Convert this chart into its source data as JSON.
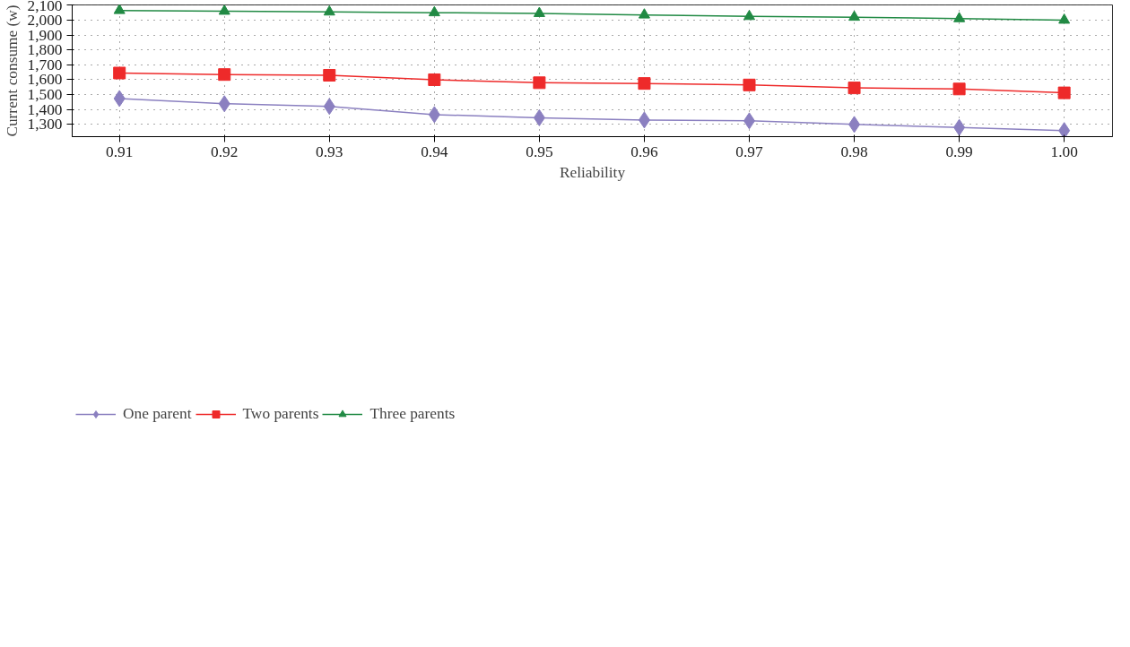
{
  "chart_data": {
    "type": "line",
    "xlabel": "Reliability",
    "ylabel": "Current consume (w)",
    "x": [
      0.91,
      0.92,
      0.93,
      0.94,
      0.95,
      0.96,
      0.97,
      0.98,
      0.99,
      1.0
    ],
    "series": [
      {
        "name": "One parent",
        "color": "#8b80c0",
        "marker": "diamond",
        "values": [
          1474,
          1439,
          1421,
          1366,
          1345,
          1330,
          1324,
          1300,
          1280,
          1259
        ]
      },
      {
        "name": "Two parents",
        "color": "#ee2a2a",
        "marker": "square",
        "values": [
          1645,
          1635,
          1630,
          1600,
          1580,
          1575,
          1565,
          1545,
          1538,
          1512
        ]
      },
      {
        "name": "Three parents",
        "color": "#218a44",
        "marker": "triangle",
        "values": [
          2065,
          2060,
          2055,
          2050,
          2045,
          2035,
          2025,
          2020,
          2010,
          2000
        ]
      }
    ],
    "xlim": [
      0.9055,
      1.0046
    ],
    "ylim": [
      1218,
      2102
    ],
    "xticks": [
      0.91,
      0.92,
      0.93,
      0.94,
      0.95,
      0.96,
      0.97,
      0.98,
      0.99,
      {
        "value": 1.0,
        "label": "1.00"
      }
    ],
    "yticks": [
      {
        "value": 1300,
        "label": "1,300"
      },
      {
        "value": 1400,
        "label": "1,400"
      },
      {
        "value": 1500,
        "label": "1,500"
      },
      {
        "value": 1600,
        "label": "1,600"
      },
      {
        "value": 1700,
        "label": "1,700"
      },
      {
        "value": 1800,
        "label": "1,800"
      },
      {
        "value": 1900,
        "label": "1,900"
      },
      {
        "value": 2000,
        "label": "2,000"
      },
      {
        "value": 2100,
        "label": "2,100"
      }
    ],
    "grid": true,
    "legend": "bottom left",
    "line_style": "solid"
  }
}
